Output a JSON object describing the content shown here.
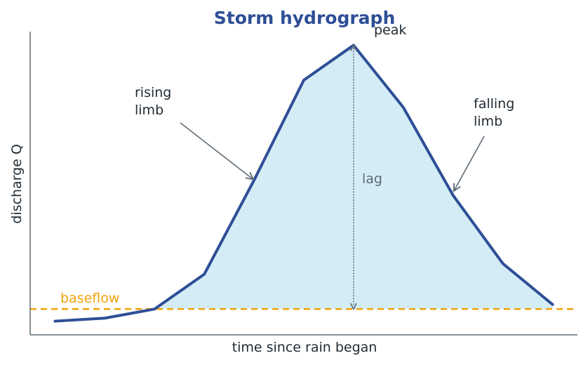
{
  "colors": {
    "title": "#2e4e96",
    "line": "#2e4e96",
    "fill": "#d4ecf6",
    "baseflow": "#f0a30a",
    "text": "#1f2a33",
    "axis": "#5f6b75",
    "arrow": "#5f6b75"
  },
  "chart_data": {
    "type": "area",
    "title": "Storm hydrograph",
    "xlabel": "time since rain began",
    "ylabel": "discharge Q",
    "xlim": [
      0,
      11
    ],
    "ylim": [
      0,
      100
    ],
    "grid": false,
    "x": [
      0.5,
      1.5,
      2.5,
      3.5,
      4.5,
      5.5,
      6.5,
      7.5,
      8.5,
      9.5,
      10.5
    ],
    "series": [
      {
        "values": [
          4.5,
          5.5,
          8.5,
          20,
          51,
          84,
          95.5,
          75,
          46,
          23.5,
          10
        ]
      }
    ],
    "baseflow": {
      "label": "baseflow",
      "value": 8.5
    },
    "annotations": {
      "peak": {
        "label": "peak",
        "x": 6.5
      },
      "rising_limb": {
        "line1": "rising",
        "line2": "limb",
        "x": 4.5,
        "y": 51
      },
      "falling_limb": {
        "line1": "falling",
        "line2": "limb",
        "x": 8.5,
        "y": 46
      },
      "lag": {
        "label": "lag",
        "x": 6.5
      }
    }
  }
}
